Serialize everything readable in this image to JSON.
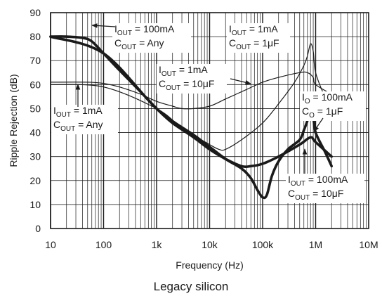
{
  "caption": "Legacy silicon",
  "chart_data": {
    "type": "line",
    "title": "",
    "xlabel": "Frequency (Hz)",
    "ylabel": "Ripple Rejection (dB)",
    "xscale": "log",
    "xlim": [
      10,
      10000000
    ],
    "ylim": [
      0,
      90
    ],
    "grid": true,
    "x_tick_labels": [
      "10",
      "100",
      "1k",
      "10k",
      "100k",
      "1M",
      "10M"
    ],
    "y_tick_labels": [
      "0",
      "10",
      "20",
      "30",
      "40",
      "50",
      "60",
      "70",
      "80",
      "90"
    ],
    "series": [
      {
        "id": "iout100-cany",
        "weight": "thick",
        "x": [
          10,
          20,
          40,
          60,
          100,
          200,
          500,
          1000,
          2000,
          5000,
          10000,
          20000,
          40000,
          60000,
          100000,
          200000,
          500000,
          800000,
          1000000,
          2000000
        ],
        "y": [
          80,
          80,
          79.5,
          78,
          73,
          66,
          57,
          50,
          44,
          38,
          33,
          29,
          26,
          26,
          27,
          30,
          35,
          38,
          36,
          30
        ]
      },
      {
        "id": "iout1-cany",
        "weight": "thick",
        "x": [
          10,
          100,
          1000,
          5000,
          10000,
          20000,
          40000,
          60000,
          80000,
          100000,
          120000,
          150000,
          200000,
          300000,
          500000,
          600000,
          700000,
          800000,
          900000,
          1000000,
          1500000,
          2000000
        ],
        "y": [
          80,
          73,
          50,
          39,
          34,
          29,
          25,
          21,
          16,
          13,
          14,
          22,
          28,
          33,
          37,
          41,
          45,
          50,
          47,
          40,
          32,
          26
        ]
      },
      {
        "id": "iout1-c10uf",
        "weight": "thin",
        "x": [
          10,
          50,
          100,
          200,
          500,
          1000,
          2000,
          3000,
          5000,
          10000,
          20000,
          50000,
          100000,
          200000,
          500000,
          700000,
          900000,
          1000000,
          2000000
        ],
        "y": [
          61,
          61,
          60.5,
          59,
          56,
          53,
          51,
          50,
          50,
          51,
          54,
          58,
          61,
          63,
          65,
          65,
          63,
          60,
          56
        ]
      },
      {
        "id": "iout1-c1uf",
        "weight": "thin",
        "x": [
          10,
          100,
          1000,
          3000,
          10000,
          15000,
          20000,
          40000,
          100000,
          200000,
          400000,
          600000,
          700000,
          800000,
          900000,
          1000000,
          1500000,
          2000000
        ],
        "y": [
          60,
          59,
          50,
          42,
          35,
          33,
          33,
          37,
          44,
          52,
          61,
          68,
          72,
          77,
          74,
          65,
          55,
          52
        ]
      }
    ],
    "annotations": [
      {
        "lines": [
          [
            "I",
            "OUT",
            " = 100mA"
          ],
          [
            "C",
            "OUT",
            " = Any"
          ]
        ]
      },
      {
        "lines": [
          [
            "I",
            "OUT",
            " = 1mA"
          ],
          [
            "C",
            "OUT",
            " = 1μF"
          ]
        ]
      },
      {
        "lines": [
          [
            "I",
            "OUT",
            " = 1mA"
          ],
          [
            "C",
            "OUT",
            " = 10μF"
          ]
        ]
      },
      {
        "lines": [
          [
            "I",
            "O",
            " = 100mA"
          ],
          [
            "C",
            "O",
            " = 1μF"
          ]
        ]
      },
      {
        "lines": [
          [
            "I",
            "OUT",
            " = 1mA"
          ],
          [
            "C",
            "OUT",
            " = Any"
          ]
        ]
      },
      {
        "lines": [
          [
            "I",
            "OUT",
            " = 100mA"
          ],
          [
            "C",
            "OUT",
            " = 10μF"
          ]
        ]
      }
    ]
  }
}
